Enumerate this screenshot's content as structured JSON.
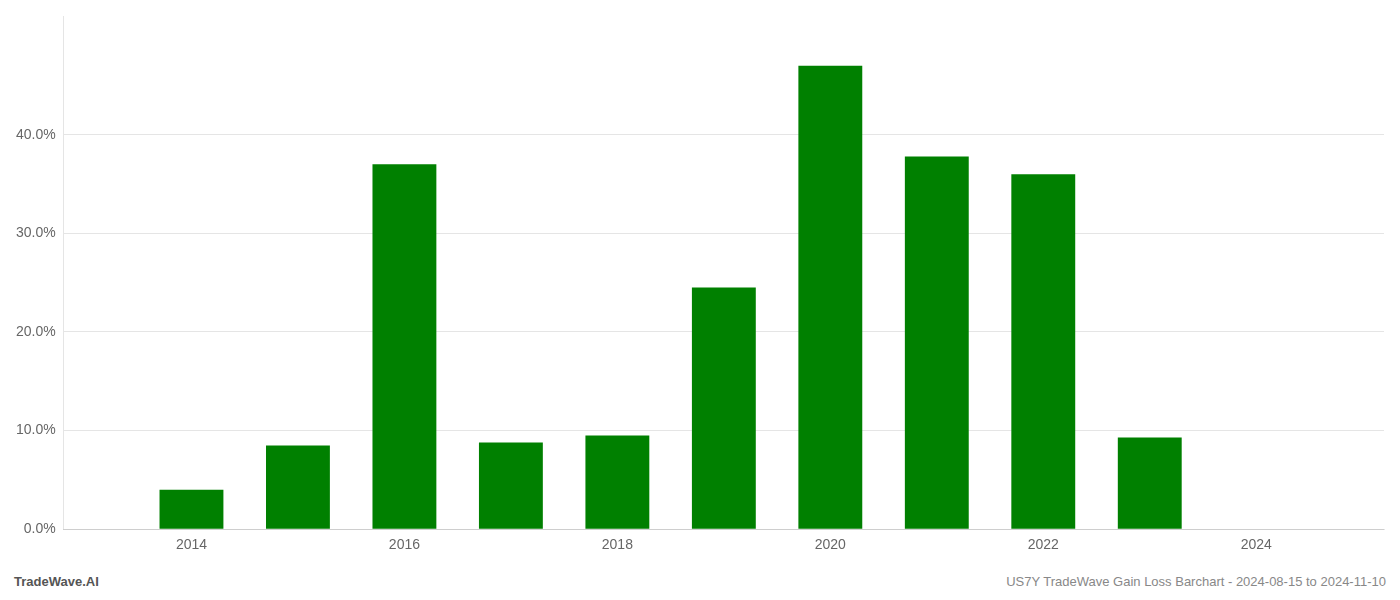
{
  "chart_data": {
    "type": "bar",
    "x": [
      2014,
      2015,
      2016,
      2017,
      2018,
      2019,
      2020,
      2021,
      2022,
      2023
    ],
    "values": [
      0.04,
      0.085,
      0.37,
      0.088,
      0.095,
      0.245,
      0.47,
      0.378,
      0.36,
      0.093
    ],
    "color": "#008000",
    "xlim": [
      2012.8,
      2025.2
    ],
    "ylim": [
      0,
      0.52
    ],
    "xticks": [
      2014,
      2016,
      2018,
      2020,
      2022,
      2024
    ],
    "yticks": [
      {
        "value": 0.0,
        "label": "0.0%"
      },
      {
        "value": 0.1,
        "label": "10.0%"
      },
      {
        "value": 0.2,
        "label": "20.0%"
      },
      {
        "value": 0.3,
        "label": "30.0%"
      },
      {
        "value": 0.4,
        "label": "40.0%"
      }
    ],
    "grid": true,
    "annotations": [
      "TradeWave.AI",
      "US7Y TradeWave Gain Loss Barchart - 2024-08-15 to 2024-11-10"
    ]
  }
}
